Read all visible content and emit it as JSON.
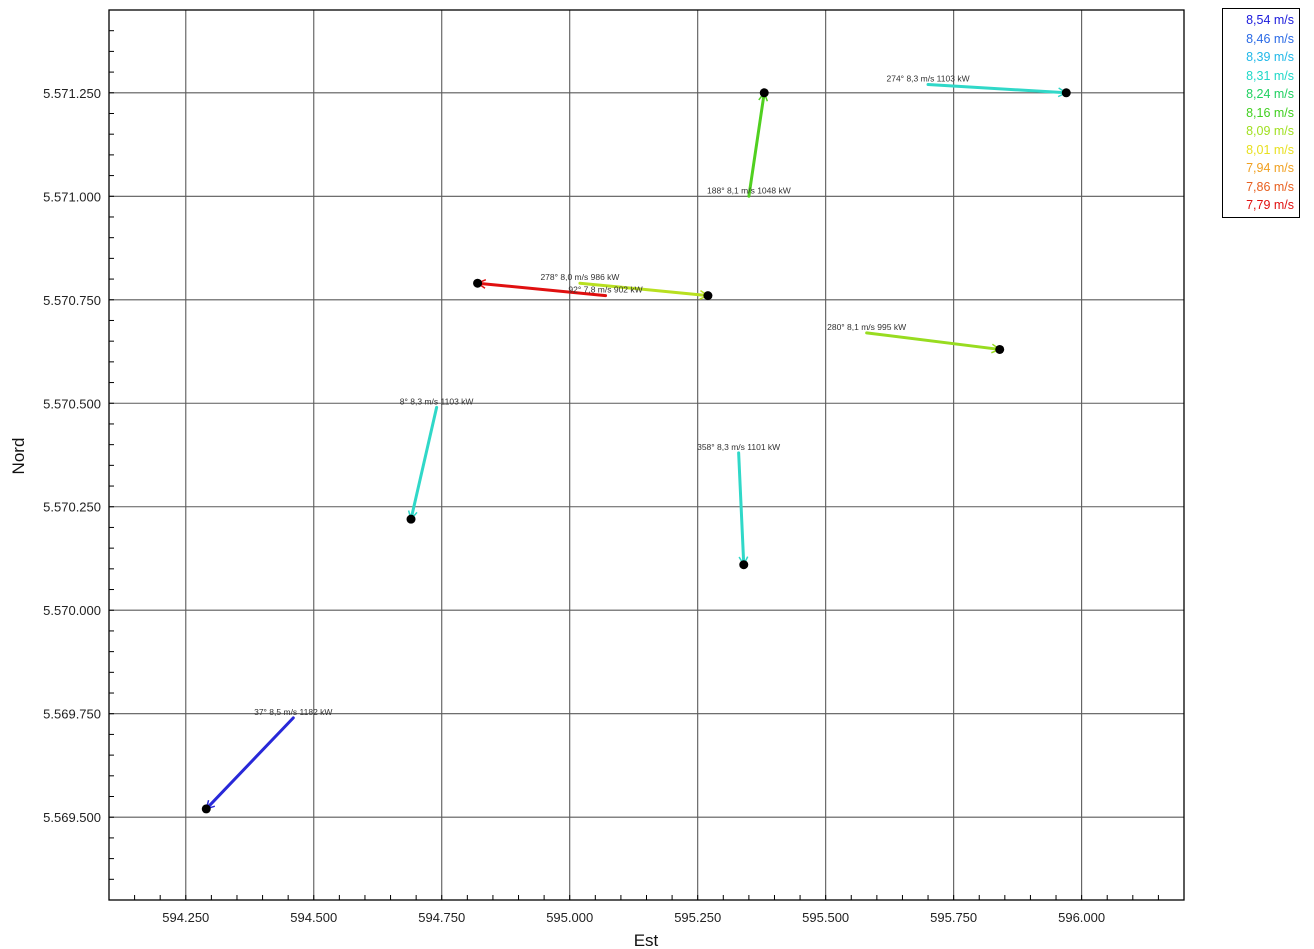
{
  "chart_data": {
    "type": "scatter",
    "xlabel": "Est",
    "ylabel": "Nord",
    "xlim": [
      594.1,
      596.2
    ],
    "ylim": [
      5569.3,
      5571.45
    ],
    "grid": true,
    "x_ticks": [
      594.25,
      594.5,
      594.75,
      595.0,
      595.25,
      595.5,
      595.75,
      596.0
    ],
    "x_tick_labels": [
      "594.250",
      "594.500",
      "594.750",
      "595.000",
      "595.250",
      "595.500",
      "595.750",
      "596.000"
    ],
    "y_ticks": [
      5569.5,
      5569.75,
      5570.0,
      5570.25,
      5570.5,
      5570.75,
      5571.0,
      5571.25
    ],
    "y_tick_labels": [
      "5.569.500",
      "5.569.750",
      "5.570.000",
      "5.570.250",
      "5.570.500",
      "5.570.750",
      "5.571.000",
      "5.571.250"
    ],
    "legend": {
      "position": "top-right",
      "items": [
        {
          "label": "8,54 m/s",
          "color": "#1a1adc"
        },
        {
          "label": "8,46 m/s",
          "color": "#2a6ae6"
        },
        {
          "label": "8,39 m/s",
          "color": "#20b8e8"
        },
        {
          "label": "8,31 m/s",
          "color": "#20d8c8"
        },
        {
          "label": "8,24 m/s",
          "color": "#20d060"
        },
        {
          "label": "8,16 m/s",
          "color": "#40d020"
        },
        {
          "label": "8,09 m/s",
          "color": "#a0e020"
        },
        {
          "label": "8,01 m/s",
          "color": "#e8e020"
        },
        {
          "label": "7,94 m/s",
          "color": "#f0a020"
        },
        {
          "label": "7,86 m/s",
          "color": "#e86020"
        },
        {
          "label": "7,79 m/s",
          "color": "#e01010"
        }
      ]
    },
    "series": [
      {
        "label": "274° 8,3 m/s 1103 kW",
        "x": 595.97,
        "y": 5571.25,
        "tail": [
          595.7,
          5571.27
        ],
        "color": "#30d8c8"
      },
      {
        "label": "188° 8,1 m/s 1048 kW",
        "x": 595.38,
        "y": 5571.25,
        "tail": [
          595.35,
          5571.0
        ],
        "color": "#50d020"
      },
      {
        "label": "278° 8,0 m/s 986 kW",
        "x": 595.27,
        "y": 5570.76,
        "tail": [
          595.02,
          5570.79
        ],
        "color": "#b8e020"
      },
      {
        "label": "92° 7,8 m/s 902 kW",
        "x": 594.82,
        "y": 5570.79,
        "tail": [
          595.07,
          5570.76
        ],
        "color": "#e01010"
      },
      {
        "label": "280° 8,1 m/s 995 kW",
        "x": 595.84,
        "y": 5570.63,
        "tail": [
          595.58,
          5570.67
        ],
        "color": "#98dc20"
      },
      {
        "label": "8° 8,3 m/s 1103 kW",
        "x": 594.69,
        "y": 5570.22,
        "tail": [
          594.74,
          5570.49
        ],
        "color": "#30d8c8"
      },
      {
        "label": "358° 8,3 m/s 1101 kW",
        "x": 595.34,
        "y": 5570.11,
        "tail": [
          595.33,
          5570.38
        ],
        "color": "#30d8c8"
      },
      {
        "label": "37° 8,5 m/s 1182 kW",
        "x": 594.29,
        "y": 5569.52,
        "tail": [
          594.46,
          5569.74
        ],
        "color": "#2828d8"
      }
    ]
  }
}
